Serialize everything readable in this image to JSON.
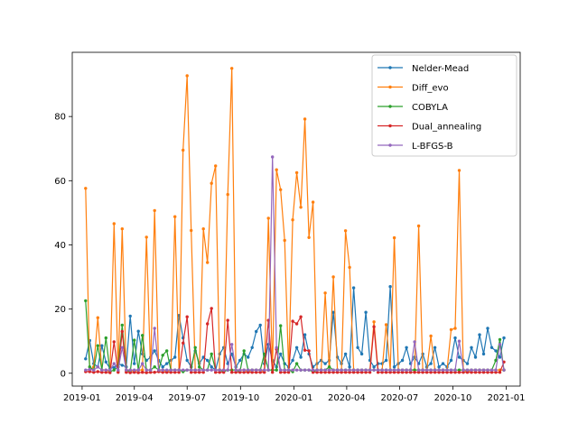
{
  "chart_data": {
    "type": "line",
    "title": "",
    "xlabel": "",
    "ylabel": "",
    "x_type": "date",
    "xlim": [
      "2018-12-15",
      "2021-01-25"
    ],
    "ylim": [
      -4,
      100
    ],
    "grid": false,
    "legend": "top-right",
    "x_ticks": [
      "2019-01",
      "2019-04",
      "2019-07",
      "2019-10",
      "2020-01",
      "2020-04",
      "2020-07",
      "2020-10",
      "2021-01"
    ],
    "y_ticks": [
      0,
      20,
      40,
      60,
      80
    ],
    "x": [
      "2019-01-07",
      "2019-01-14",
      "2019-01-21",
      "2019-01-28",
      "2019-02-04",
      "2019-02-11",
      "2019-02-18",
      "2019-02-25",
      "2019-03-04",
      "2019-03-11",
      "2019-03-18",
      "2019-03-25",
      "2019-04-01",
      "2019-04-08",
      "2019-04-15",
      "2019-04-22",
      "2019-04-29",
      "2019-05-06",
      "2019-05-13",
      "2019-05-20",
      "2019-05-27",
      "2019-06-03",
      "2019-06-10",
      "2019-06-17",
      "2019-06-24",
      "2019-07-01",
      "2019-07-08",
      "2019-07-15",
      "2019-07-22",
      "2019-07-29",
      "2019-08-05",
      "2019-08-12",
      "2019-08-19",
      "2019-08-26",
      "2019-09-02",
      "2019-09-09",
      "2019-09-16",
      "2019-09-23",
      "2019-09-30",
      "2019-10-07",
      "2019-10-14",
      "2019-10-21",
      "2019-10-28",
      "2019-11-04",
      "2019-11-11",
      "2019-11-18",
      "2019-11-25",
      "2019-12-02",
      "2019-12-09",
      "2019-12-16",
      "2019-12-23",
      "2019-12-30",
      "2020-01-06",
      "2020-01-13",
      "2020-01-20",
      "2020-01-27",
      "2020-02-03",
      "2020-02-10",
      "2020-02-17",
      "2020-02-24",
      "2020-03-02",
      "2020-03-09",
      "2020-03-16",
      "2020-03-23",
      "2020-03-30",
      "2020-04-06",
      "2020-04-13",
      "2020-04-20",
      "2020-04-27",
      "2020-05-04",
      "2020-05-11",
      "2020-05-18",
      "2020-05-25",
      "2020-06-01",
      "2020-06-08",
      "2020-06-15",
      "2020-06-22",
      "2020-06-29",
      "2020-07-06",
      "2020-07-13",
      "2020-07-20",
      "2020-07-27",
      "2020-08-03",
      "2020-08-10",
      "2020-08-17",
      "2020-08-24",
      "2020-08-31",
      "2020-09-07",
      "2020-09-14",
      "2020-09-21",
      "2020-09-28",
      "2020-10-05",
      "2020-10-12",
      "2020-10-19",
      "2020-10-26",
      "2020-11-02",
      "2020-11-09",
      "2020-11-16",
      "2020-11-23",
      "2020-11-30",
      "2020-12-07",
      "2020-12-14",
      "2020-12-21",
      "2020-12-28"
    ],
    "series": [
      {
        "name": "Nelder-Mead",
        "color": "#1f77b4",
        "values": [
          4.5,
          10.2,
          3.0,
          2.0,
          8.6,
          3.5,
          1.5,
          1.8,
          3.0,
          2.5,
          2.0,
          17.8,
          3.0,
          13.1,
          6.0,
          4.0,
          5.0,
          7.0,
          4.0,
          2.0,
          3.0,
          4.0,
          5.0,
          18.0,
          11.0,
          4.0,
          2.0,
          7.0,
          3.0,
          5.0,
          4.0,
          2.0,
          1.0,
          6.0,
          8.0,
          3.0,
          6.0,
          2.0,
          4.0,
          6.0,
          5.0,
          8.0,
          13.0,
          15.0,
          3.0,
          9.0,
          4.0,
          2.0,
          6.0,
          3.0,
          2.0,
          4.0,
          8.0,
          5.0,
          12.0,
          6.0,
          2.0,
          3.0,
          4.0,
          3.0,
          4.0,
          19.0,
          5.0,
          3.0,
          6.0,
          2.0,
          26.6,
          8.0,
          6.0,
          19.0,
          4.0,
          2.0,
          3.0,
          3.0,
          4.0,
          27.0,
          2.0,
          3.0,
          4.0,
          8.0,
          3.0,
          5.0,
          3.0,
          6.0,
          2.0,
          3.0,
          8.0,
          2.0,
          3.0,
          2.0,
          4.0,
          11.0,
          5.0,
          4.0,
          3.0,
          8.0,
          5.0,
          12.0,
          6.0,
          14.0,
          8.0,
          7.0,
          5.0,
          11.0
        ]
      },
      {
        "name": "Diff_evo",
        "color": "#ff7f0e",
        "values": [
          57.6,
          1.0,
          2.0,
          17.3,
          1.0,
          1.0,
          0.5,
          46.6,
          0.5,
          45.0,
          0.5,
          1.0,
          0.5,
          1.0,
          1.0,
          42.4,
          1.0,
          50.7,
          1.0,
          1.0,
          0.5,
          1.0,
          48.8,
          1.0,
          69.5,
          92.7,
          44.5,
          1.0,
          1.0,
          45.0,
          34.5,
          59.2,
          64.6,
          1.0,
          1.0,
          55.7,
          95.0,
          1.0,
          1.0,
          1.0,
          0.5,
          1.0,
          1.0,
          1.0,
          0.5,
          48.3,
          1.0,
          63.4,
          57.2,
          41.4,
          1.0,
          47.8,
          62.5,
          51.7,
          79.2,
          42.3,
          53.3,
          1.0,
          1.0,
          25.0,
          1.0,
          30.0,
          1.0,
          1.0,
          44.4,
          33.0,
          1.0,
          1.0,
          1.0,
          1.0,
          1.0,
          16.0,
          1.0,
          1.0,
          15.1,
          1.0,
          42.2,
          1.0,
          1.0,
          1.0,
          1.0,
          1.0,
          45.9,
          1.0,
          1.0,
          11.6,
          1.0,
          1.0,
          1.0,
          1.0,
          13.6,
          14.0,
          63.2,
          1.0,
          0.5,
          1.0,
          1.0,
          1.0,
          1.0,
          1.0,
          1.0,
          1.0,
          1.0,
          1.0
        ]
      },
      {
        "name": "COBYLA",
        "color": "#2ca02c",
        "values": [
          22.6,
          2.0,
          1.0,
          8.6,
          1.0,
          11.0,
          0.5,
          1.0,
          2.0,
          15.0,
          1.0,
          0.5,
          10.3,
          1.0,
          11.8,
          1.0,
          1.0,
          2.0,
          1.0,
          5.6,
          7.0,
          1.0,
          1.0,
          1.0,
          0.5,
          1.0,
          1.0,
          8.0,
          2.0,
          1.0,
          1.0,
          6.0,
          1.0,
          1.0,
          0.5,
          1.0,
          1.0,
          1.0,
          0.5,
          7.0,
          1.0,
          1.0,
          1.0,
          1.0,
          6.0,
          1.0,
          1.0,
          1.0,
          14.8,
          1.0,
          1.0,
          0.5,
          3.0,
          1.0,
          1.0,
          1.0,
          0.5,
          1.0,
          1.0,
          1.0,
          2.0,
          1.0,
          1.0,
          1.0,
          1.0,
          1.0,
          1.0,
          1.0,
          1.0,
          1.0,
          1.0,
          1.0,
          1.0,
          1.0,
          1.0,
          1.0,
          1.0,
          1.0,
          1.0,
          1.0,
          1.0,
          1.0,
          1.0,
          1.0,
          1.0,
          1.0,
          1.0,
          1.0,
          1.0,
          1.0,
          1.0,
          1.0,
          1.0,
          1.0,
          1.0,
          1.0,
          1.0,
          1.0,
          1.0,
          1.0,
          1.0,
          4.0,
          10.5,
          1.0
        ]
      },
      {
        "name": "Dual_annealing",
        "color": "#d62728",
        "values": [
          0.5,
          0.5,
          0.3,
          0.5,
          0.3,
          0.3,
          0.2,
          9.8,
          0.3,
          13.0,
          0.3,
          0.2,
          0.3,
          0.2,
          0.3,
          0.2,
          0.3,
          0.3,
          0.5,
          0.3,
          0.3,
          0.3,
          0.3,
          0.3,
          9.4,
          17.6,
          0.3,
          0.3,
          0.3,
          0.3,
          15.4,
          20.2,
          0.3,
          0.3,
          0.3,
          16.5,
          0.3,
          0.3,
          0.3,
          0.3,
          0.3,
          0.3,
          0.3,
          0.3,
          0.3,
          16.5,
          0.3,
          7.5,
          0.3,
          0.3,
          0.3,
          16.2,
          15.4,
          17.6,
          7.2,
          7.0,
          0.3,
          0.3,
          0.3,
          0.3,
          0.3,
          0.3,
          0.3,
          0.3,
          0.3,
          0.3,
          0.3,
          0.3,
          0.3,
          0.3,
          0.3,
          14.5,
          0.3,
          0.3,
          0.3,
          0.3,
          0.3,
          0.3,
          0.3,
          0.3,
          0.3,
          0.3,
          0.3,
          0.3,
          0.3,
          0.3,
          0.3,
          0.3,
          0.3,
          0.3,
          0.3,
          0.3,
          0.3,
          0.3,
          0.3,
          0.3,
          0.3,
          0.3,
          0.3,
          0.3,
          0.3,
          0.3,
          0.3,
          3.5
        ]
      },
      {
        "name": "L-BFGS-B",
        "color": "#9467bd",
        "values": [
          1.0,
          1.2,
          1.0,
          2.0,
          1.0,
          1.0,
          1.0,
          3.0,
          1.0,
          8.0,
          1.0,
          1.0,
          1.0,
          1.0,
          3.0,
          1.0,
          1.0,
          14.0,
          1.0,
          1.0,
          1.0,
          1.0,
          1.0,
          1.0,
          1.0,
          1.0,
          1.0,
          1.0,
          1.0,
          1.0,
          1.0,
          1.0,
          1.0,
          1.0,
          1.0,
          1.0,
          9.0,
          1.0,
          1.0,
          1.0,
          1.0,
          1.0,
          1.0,
          1.0,
          1.0,
          1.0,
          67.4,
          8.0,
          1.0,
          1.0,
          1.0,
          1.0,
          1.0,
          1.0,
          1.0,
          1.0,
          1.0,
          1.0,
          1.0,
          1.0,
          1.0,
          1.0,
          1.0,
          1.0,
          1.0,
          1.0,
          1.0,
          1.0,
          1.0,
          1.0,
          1.0,
          1.0,
          1.0,
          1.0,
          1.0,
          1.0,
          1.0,
          1.0,
          1.0,
          1.0,
          1.0,
          9.8,
          1.0,
          1.0,
          1.0,
          1.0,
          1.0,
          1.0,
          1.0,
          1.0,
          1.0,
          1.0,
          10.0,
          1.0,
          1.0,
          1.0,
          1.0,
          1.0,
          1.0,
          1.0,
          1.0,
          1.0,
          9.0,
          1.0
        ]
      }
    ]
  }
}
